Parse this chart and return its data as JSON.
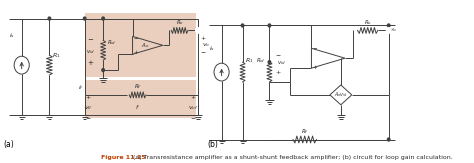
{
  "caption_bold": "Figure 11.15",
  "caption_normal": " (a) Transresistance amplifier as a shunt-shunt feedback amplifier; (b) circuit for loop gain calculation.",
  "label_a": "(a)",
  "label_b": "(b)",
  "background_color": "#ffffff",
  "shaded_color": "#d9a98a",
  "fig_width": 4.74,
  "fig_height": 1.63,
  "dpi": 100
}
